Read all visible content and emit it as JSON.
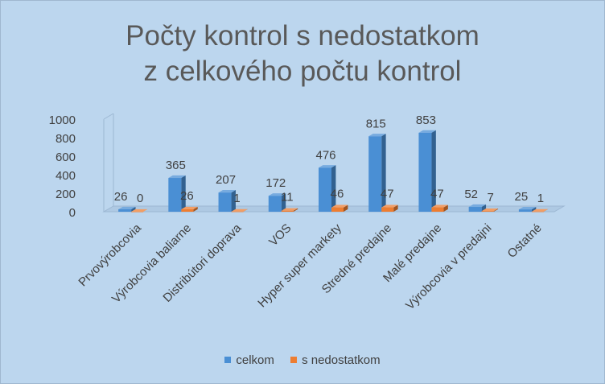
{
  "chart_data": {
    "type": "bar",
    "title": [
      "Počty kontrol s nedostatkom",
      "z celkového počtu kontrol"
    ],
    "categories": [
      "Prvovýrobcovia",
      "Výrobcovia baliarne",
      "Distribútori doprava",
      "VOS",
      "Hyper super markety",
      "Stredné predajne",
      "Malé predajne",
      "Výrobcovia v predajni",
      "Ostatné"
    ],
    "series": [
      {
        "name": "celkom",
        "values": [
          26,
          365,
          207,
          172,
          476,
          815,
          853,
          52,
          25
        ],
        "color": "#4a8fd4"
      },
      {
        "name": "s nedostatkom",
        "values": [
          0,
          26,
          1,
          11,
          46,
          47,
          47,
          7,
          1
        ],
        "color": "#ed7d31"
      }
    ],
    "y_ticks": [
      "0",
      "200",
      "400",
      "600",
      "800",
      "1000"
    ],
    "ylim": [
      0,
      1000
    ],
    "legend_position": "bottom",
    "style": "3d-column"
  }
}
